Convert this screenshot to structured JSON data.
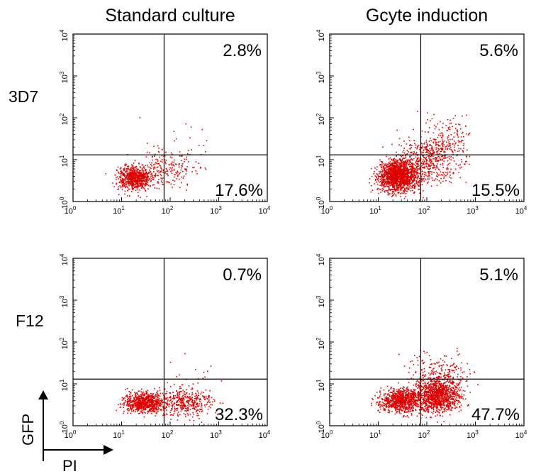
{
  "columns": [
    "Standard culture",
    "Gcyte induction"
  ],
  "rows": [
    "3D7",
    "F12"
  ],
  "axis_labels": {
    "x": "PI",
    "y": "GFP"
  },
  "colors": {
    "dots": "#dd0000",
    "frame": "#000000"
  },
  "chart_data": [
    {
      "type": "scatter",
      "row": "3D7",
      "column": "Standard culture",
      "xscale": "log",
      "yscale": "log",
      "xlim": [
        1,
        10000
      ],
      "ylim": [
        1,
        10000
      ],
      "x_ticks": [
        "10^0",
        "10^1",
        "10^2",
        "10^3",
        "10^4"
      ],
      "y_ticks": [
        "10^0",
        "10^1",
        "10^2",
        "10^3",
        "10^4"
      ],
      "gate": {
        "x": 75,
        "y": 13
      },
      "quadrant_labels": {
        "upper_right": "2.8%",
        "lower_right": "17.6%"
      },
      "clusters": [
        {
          "cx": 18,
          "cy": 3.8,
          "sx": 0.17,
          "sy": 0.14,
          "n": 750
        },
        {
          "cx": 80,
          "cy": 6,
          "sx": 0.28,
          "sy": 0.25,
          "n": 170
        },
        {
          "cx": 160,
          "cy": 14,
          "sx": 0.3,
          "sy": 0.38,
          "n": 45
        }
      ]
    },
    {
      "type": "scatter",
      "row": "3D7",
      "column": "Gcyte induction",
      "xscale": "log",
      "yscale": "log",
      "xlim": [
        1,
        10000
      ],
      "ylim": [
        1,
        10000
      ],
      "x_ticks": [
        "10^0",
        "10^1",
        "10^2",
        "10^3",
        "10^4"
      ],
      "y_ticks": [
        "10^0",
        "10^1",
        "10^2",
        "10^3",
        "10^4"
      ],
      "gate": {
        "x": 75,
        "y": 13
      },
      "quadrant_labels": {
        "upper_right": "5.6%",
        "lower_right": "15.5%"
      },
      "clusters": [
        {
          "cx": 25,
          "cy": 4.2,
          "sx": 0.2,
          "sy": 0.17,
          "n": 1700
        },
        {
          "cx": 100,
          "cy": 10,
          "sx": 0.3,
          "sy": 0.27,
          "n": 500
        },
        {
          "cx": 250,
          "cy": 28,
          "sx": 0.25,
          "sy": 0.32,
          "n": 170
        }
      ]
    },
    {
      "type": "scatter",
      "row": "F12",
      "column": "Standard culture",
      "xscale": "log",
      "yscale": "log",
      "xlim": [
        1,
        10000
      ],
      "ylim": [
        1,
        10000
      ],
      "x_ticks": [
        "10^0",
        "10^1",
        "10^2",
        "10^3",
        "10^4"
      ],
      "y_ticks": [
        "10^0",
        "10^1",
        "10^2",
        "10^3",
        "10^4"
      ],
      "gate": {
        "x": 75,
        "y": 13
      },
      "quadrant_labels": {
        "upper_right": "0.7%",
        "lower_right": "32.3%"
      },
      "clusters": [
        {
          "cx": 28,
          "cy": 3.6,
          "sx": 0.2,
          "sy": 0.12,
          "n": 750
        },
        {
          "cx": 180,
          "cy": 3.6,
          "sx": 0.3,
          "sy": 0.18,
          "n": 420
        },
        {
          "cx": 250,
          "cy": 12,
          "sx": 0.35,
          "sy": 0.3,
          "n": 20
        }
      ]
    },
    {
      "type": "scatter",
      "row": "F12",
      "column": "Gcyte induction",
      "xscale": "log",
      "yscale": "log",
      "xlim": [
        1,
        10000
      ],
      "ylim": [
        1,
        10000
      ],
      "x_ticks": [
        "10^0",
        "10^1",
        "10^2",
        "10^3",
        "10^4"
      ],
      "y_ticks": [
        "10^0",
        "10^1",
        "10^2",
        "10^3",
        "10^4"
      ],
      "gate": {
        "x": 75,
        "y": 13
      },
      "quadrant_labels": {
        "upper_right": "5.1%",
        "lower_right": "47.7%"
      },
      "clusters": [
        {
          "cx": 30,
          "cy": 4.2,
          "sx": 0.22,
          "sy": 0.14,
          "n": 900
        },
        {
          "cx": 170,
          "cy": 5.5,
          "sx": 0.22,
          "sy": 0.2,
          "n": 1100
        },
        {
          "cx": 160,
          "cy": 16,
          "sx": 0.3,
          "sy": 0.3,
          "n": 240
        }
      ]
    }
  ]
}
